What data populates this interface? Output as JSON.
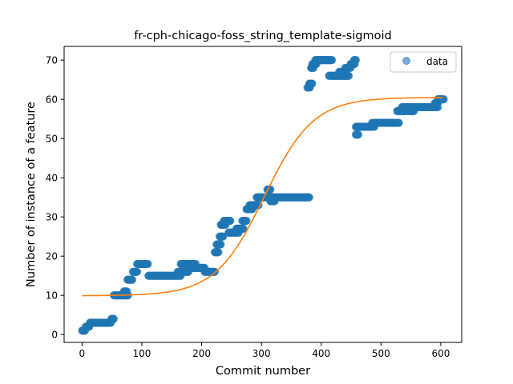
{
  "chart_data": {
    "type": "scatter",
    "title": "fr-cph-chicago-foss_string_template-sigmoid",
    "xlabel": "Commit number",
    "ylabel": "Number of instance of a feature",
    "xlim": [
      -30,
      635
    ],
    "ylim": [
      -2,
      73.5
    ],
    "xticks": [
      0,
      100,
      200,
      300,
      400,
      500,
      600
    ],
    "yticks": [
      0,
      10,
      20,
      30,
      40,
      50,
      60,
      70
    ],
    "legend_position": "top-right",
    "series": [
      {
        "name": "data",
        "kind": "scatter",
        "color": "#1f77b4",
        "segments": [
          [
            0,
            5,
            1
          ],
          [
            6,
            12,
            2
          ],
          [
            13,
            48,
            3
          ],
          [
            49,
            53,
            4
          ],
          [
            53,
            77,
            10
          ],
          [
            70,
            75,
            11
          ],
          [
            76,
            84,
            14
          ],
          [
            85,
            92,
            16
          ],
          [
            92,
            110,
            18
          ],
          [
            111,
            165,
            15
          ],
          [
            160,
            178,
            16
          ],
          [
            165,
            190,
            18
          ],
          [
            185,
            205,
            17
          ],
          [
            205,
            222,
            16
          ],
          [
            222,
            228,
            21
          ],
          [
            225,
            232,
            23
          ],
          [
            230,
            236,
            25
          ],
          [
            232,
            240,
            28
          ],
          [
            237,
            248,
            29
          ],
          [
            245,
            262,
            26
          ],
          [
            258,
            270,
            27
          ],
          [
            268,
            275,
            29
          ],
          [
            275,
            285,
            32
          ],
          [
            280,
            295,
            33
          ],
          [
            292,
            300,
            35
          ],
          [
            300,
            315,
            35
          ],
          [
            310,
            315,
            37
          ],
          [
            315,
            322,
            34
          ],
          [
            315,
            380,
            35
          ],
          [
            377,
            381,
            63
          ],
          [
            380,
            385,
            64
          ],
          [
            383,
            387,
            68
          ],
          [
            385,
            392,
            69
          ],
          [
            390,
            418,
            70
          ],
          [
            413,
            435,
            66
          ],
          [
            430,
            440,
            67
          ],
          [
            436,
            446,
            66
          ],
          [
            440,
            449,
            68
          ],
          [
            449,
            456,
            69
          ],
          [
            455,
            458,
            70
          ],
          [
            458,
            462,
            51
          ],
          [
            458,
            489,
            53
          ],
          [
            485,
            530,
            54
          ],
          [
            527,
            540,
            57
          ],
          [
            535,
            550,
            58
          ],
          [
            545,
            555,
            57
          ],
          [
            550,
            595,
            58
          ],
          [
            590,
            595,
            59
          ],
          [
            595,
            605,
            60
          ]
        ]
      },
      {
        "name": "",
        "kind": "line",
        "color": "#ff7f0e",
        "model": "sigmoid",
        "params": {
          "lower": 9.9,
          "upper": 60.5,
          "midpoint": 305,
          "scale": 41
        },
        "x_range": [
          0,
          605
        ]
      }
    ]
  }
}
